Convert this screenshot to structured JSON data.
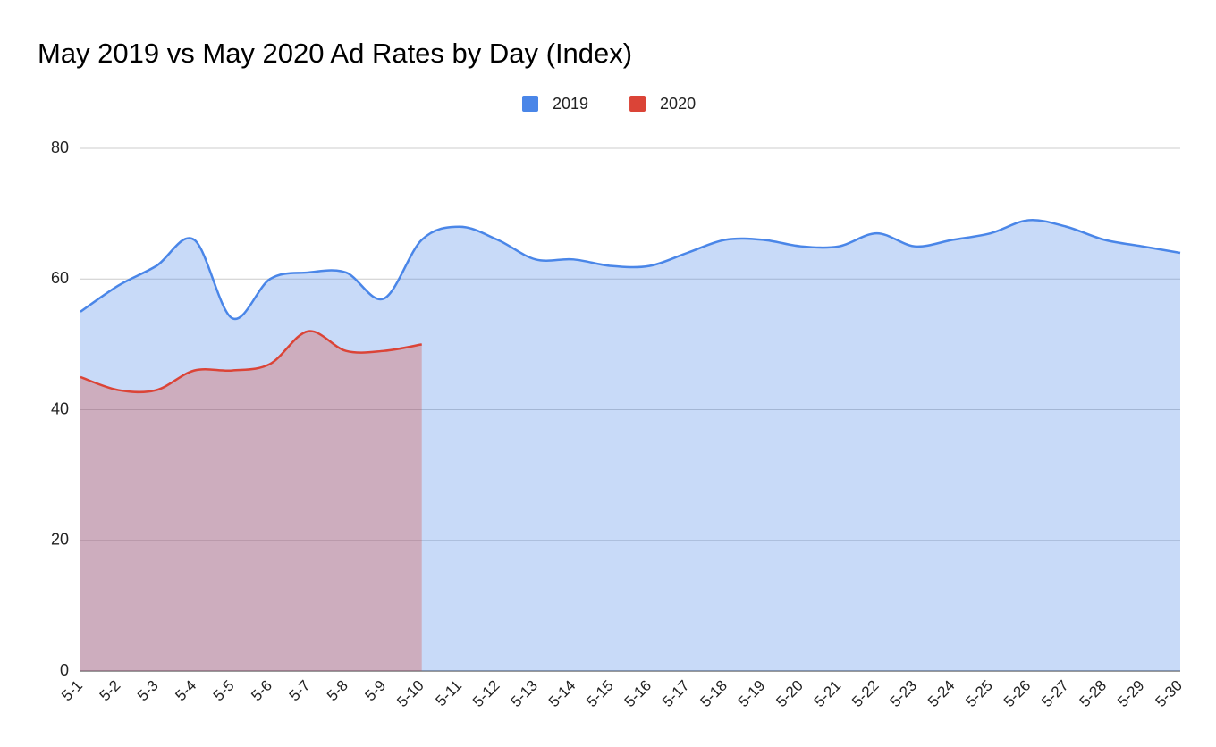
{
  "chart_data": {
    "type": "area",
    "title": "May 2019 vs May 2020 Ad Rates by Day (Index)",
    "categories": [
      "5-1",
      "5-2",
      "5-3",
      "5-4",
      "5-5",
      "5-6",
      "5-7",
      "5-8",
      "5-9",
      "5-10",
      "5-11",
      "5-12",
      "5-13",
      "5-14",
      "5-15",
      "5-16",
      "5-17",
      "5-18",
      "5-19",
      "5-20",
      "5-21",
      "5-22",
      "5-23",
      "5-24",
      "5-25",
      "5-26",
      "5-27",
      "5-28",
      "5-29",
      "5-30"
    ],
    "series": [
      {
        "name": "2019",
        "color": "#4a86e8",
        "values": [
          55,
          59,
          62,
          66,
          54,
          60,
          61,
          61,
          57,
          66,
          68,
          66,
          63,
          63,
          62,
          62,
          64,
          66,
          66,
          65,
          65,
          67,
          65,
          66,
          67,
          69,
          68,
          66,
          65,
          64
        ]
      },
      {
        "name": "2020",
        "color": "#db4437",
        "values": [
          45,
          43,
          43,
          46,
          46,
          47,
          52,
          49,
          49,
          50,
          null,
          null,
          null,
          null,
          null,
          null,
          null,
          null,
          null,
          null,
          null,
          null,
          null,
          null,
          null,
          null,
          null,
          null,
          null,
          null
        ]
      }
    ],
    "ylim": [
      0,
      80
    ],
    "yticks": [
      0,
      20,
      40,
      60,
      80
    ],
    "grid": true,
    "legend": "top"
  }
}
